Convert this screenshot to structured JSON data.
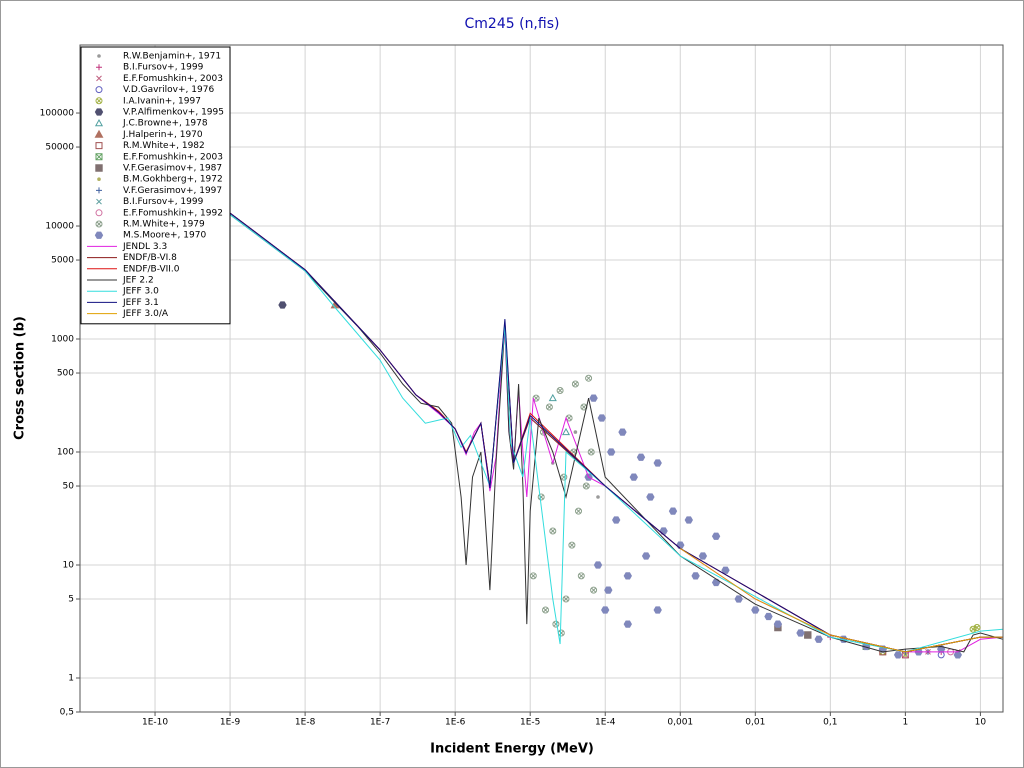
{
  "chart_data": {
    "type": "scatter",
    "title": "Cm245 (n,fis)",
    "x_label": "Incident Energy (MeV)",
    "y_label": "Cross section (b)",
    "log_x": true,
    "log_y": true,
    "grid": true,
    "legend": "upper left",
    "xlim": [
      1e-11,
      20
    ],
    "ylim": [
      0.5,
      400000
    ],
    "xticks": [
      {
        "value": 1e-10,
        "label": "1E-10"
      },
      {
        "value": 1e-09,
        "label": "1E-9"
      },
      {
        "value": 1e-08,
        "label": "1E-8"
      },
      {
        "value": 1e-07,
        "label": "1E-7"
      },
      {
        "value": 1e-06,
        "label": "1E-6"
      },
      {
        "value": 1e-05,
        "label": "1E-5"
      },
      {
        "value": 0.0001,
        "label": "1E-4"
      },
      {
        "value": 0.001,
        "label": "0,001"
      },
      {
        "value": 0.01,
        "label": "0,01"
      },
      {
        "value": 0.1,
        "label": "0,1"
      },
      1,
      10
    ],
    "yticks": [
      {
        "value": 0.5,
        "label": "0,5"
      },
      1,
      5,
      10,
      50,
      100,
      500,
      1000,
      5000,
      10000,
      50000,
      100000
    ],
    "series": [
      {
        "name": "R.W.Benjamin+, 1971",
        "kind": "points",
        "marker": "dot",
        "color": "#9a9a9a",
        "x": [
          2e-05,
          4e-05,
          8e-05
        ],
        "values": [
          80,
          150,
          40
        ]
      },
      {
        "name": "B.I.Fursov+, 1999",
        "kind": "points",
        "marker": "plus",
        "color": "#c0307a",
        "x": [
          0.1,
          0.3,
          1,
          3
        ],
        "values": [
          2.3,
          1.9,
          1.7,
          1.7
        ]
      },
      {
        "name": "E.F.Fomushkin+, 2003",
        "kind": "points",
        "marker": "x",
        "color": "#c06080",
        "x": [
          1,
          2,
          5
        ],
        "values": [
          1.6,
          1.7,
          1.7
        ]
      },
      {
        "name": "V.D.Gavrilov+, 1976",
        "kind": "points",
        "marker": "circle",
        "color": "#6060c0",
        "x": [
          1,
          3
        ],
        "values": [
          1.6,
          1.6
        ]
      },
      {
        "name": "I.A.Ivanin+, 1997",
        "kind": "points",
        "marker": "circle-x",
        "color": "#a0b040",
        "x": [
          0.5,
          1,
          8,
          9
        ],
        "values": [
          1.7,
          1.6,
          2.7,
          2.8
        ]
      },
      {
        "name": "V.P.Alfimenkov+, 1995",
        "kind": "points",
        "marker": "hexagon",
        "color": "#505070",
        "x": [
          5e-09
        ],
        "values": [
          2000
        ]
      },
      {
        "name": "J.C.Browne+, 1978",
        "kind": "points",
        "marker": "triangle",
        "color": "#50a0a0",
        "x": [
          2e-05,
          3e-05
        ],
        "values": [
          300,
          150
        ]
      },
      {
        "name": "J.Halperin+, 1970",
        "kind": "points",
        "marker": "triangle-filled",
        "color": "#b07060",
        "x": [
          2.5e-08
        ],
        "values": [
          2000
        ]
      },
      {
        "name": "R.M.White+, 1982",
        "kind": "points",
        "marker": "square",
        "color": "#a05050",
        "x": [
          0.5,
          1
        ],
        "values": [
          1.7,
          1.6
        ]
      },
      {
        "name": "E.F.Fomushkin+, 2003",
        "kind": "points",
        "marker": "square-x",
        "color": "#60a060",
        "x": [
          0.05,
          0.3
        ],
        "values": [
          2.4,
          1.9
        ]
      },
      {
        "name": "V.F.Gerasimov+, 1987",
        "kind": "points",
        "marker": "square-filled",
        "color": "#807070",
        "x": [
          0.02,
          0.05
        ],
        "values": [
          2.8,
          2.4
        ]
      },
      {
        "name": "B.M.Gokhberg+, 1972",
        "kind": "points",
        "marker": "dot",
        "color": "#b0b060",
        "x": [
          1
        ],
        "values": [
          1.6
        ]
      },
      {
        "name": "V.F.Gerasimov+, 1997",
        "kind": "points",
        "marker": "plus",
        "color": "#4060a0",
        "x": [
          1,
          2
        ],
        "values": [
          1.7,
          1.7
        ]
      },
      {
        "name": "B.I.Fursov+, 1999",
        "kind": "points",
        "marker": "x",
        "color": "#60a0a0",
        "x": [
          0.5
        ],
        "values": [
          1.8
        ]
      },
      {
        "name": "E.F.Fomushkin+, 1992",
        "kind": "points",
        "marker": "circle",
        "color": "#d070a0",
        "x": [
          1,
          4
        ],
        "values": [
          1.6,
          1.7
        ]
      },
      {
        "name": "R.M.White+, 1979",
        "kind": "points",
        "marker": "circle-x",
        "color": "#8ca08c",
        "x": [
          1.1e-05,
          1.2e-05,
          1.4e-05,
          1.5e-05,
          1.6e-05,
          1.8e-05,
          2e-05,
          2.2e-05,
          2.5e-05,
          2.6e-05,
          2.8e-05,
          3e-05,
          3.3e-05,
          3.6e-05,
          3.8e-05,
          4e-05,
          4.4e-05,
          4.8e-05,
          5.2e-05,
          5.6e-05,
          6e-05,
          6.5e-05,
          7e-05
        ],
        "values": [
          8,
          300,
          40,
          150,
          4,
          250,
          20,
          3,
          350,
          2.5,
          60,
          5,
          200,
          15,
          100,
          400,
          30,
          8,
          250,
          50,
          450,
          100,
          6
        ]
      },
      {
        "name": "M.S.Moore+, 1970",
        "kind": "points",
        "marker": "hexagon",
        "color": "#8088bc",
        "x": [
          6e-05,
          7e-05,
          8e-05,
          9e-05,
          0.0001,
          0.00011,
          0.00012,
          0.00014,
          0.00017,
          0.0002,
          0.0002,
          0.00024,
          0.0003,
          0.00035,
          0.0004,
          0.0005,
          0.0005,
          0.0006,
          0.0008,
          0.001,
          0.0013,
          0.0016,
          0.002,
          0.003,
          0.003,
          0.004,
          0.006,
          0.01,
          0.015,
          0.02,
          0.04,
          0.07,
          0.15,
          0.3,
          0.5,
          0.8,
          1.5,
          3,
          5
        ],
        "values": [
          60,
          300,
          10,
          200,
          4,
          6,
          100,
          25,
          150,
          8,
          3,
          60,
          90,
          12,
          40,
          80,
          4,
          20,
          30,
          15,
          25,
          8,
          12,
          7,
          18,
          9,
          5,
          4,
          3.5,
          3,
          2.5,
          2.2,
          2.2,
          1.9,
          1.8,
          1.6,
          1.7,
          1.8,
          1.6
        ]
      },
      {
        "name": "JENDL 3.3",
        "kind": "line",
        "color": "#e020e0",
        "x": [
          1e-10,
          1e-09,
          1e-08,
          2.5e-08,
          1e-07,
          3e-07,
          6e-07,
          1e-06,
          1.4e-06,
          1.8e-06,
          2.2e-06,
          2.9e-06,
          3.5e-06,
          4.2e-06,
          4.6e-06,
          5.2e-06,
          6e-06,
          7e-06,
          8e-06,
          9e-06,
          1.1e-05,
          2e-05,
          3e-05,
          6e-05,
          0.0001,
          0.001,
          0.01,
          0.1,
          1,
          5,
          10,
          20
        ],
        "values": [
          40000,
          13000,
          4100,
          2100,
          800,
          320,
          220,
          160,
          95,
          150,
          180,
          45,
          90,
          600,
          1200,
          150,
          80,
          350,
          100,
          40,
          300,
          80,
          200,
          60,
          50,
          14,
          5,
          2.4,
          1.7,
          1.7,
          2.2,
          2.3
        ]
      },
      {
        "name": "ENDF/B-VI.8",
        "kind": "line",
        "color": "#8b1a1a",
        "x": [
          1e-10,
          1e-09,
          1e-08,
          1e-07,
          3e-07,
          6e-07,
          1e-06,
          1.4e-06,
          2.2e-06,
          2.9e-06,
          4.6e-06,
          6e-06,
          1e-05,
          0.0001,
          0.001,
          0.1,
          1,
          10,
          20
        ],
        "values": [
          40000,
          13000,
          4100,
          800,
          320,
          230,
          160,
          100,
          180,
          50,
          1300,
          80,
          200,
          50,
          14,
          2.4,
          1.7,
          2.3,
          2.3
        ]
      },
      {
        "name": "ENDF/B-VII.0",
        "kind": "line",
        "color": "#dd1010",
        "x": [
          1e-10,
          1e-09,
          1e-08,
          1e-07,
          3e-07,
          6e-07,
          1e-06,
          1.4e-06,
          2.2e-06,
          2.9e-06,
          4.6e-06,
          6e-06,
          1e-05,
          0.0001,
          0.001,
          0.1,
          1,
          10,
          20
        ],
        "values": [
          40000,
          13000,
          4100,
          800,
          320,
          230,
          160,
          100,
          180,
          50,
          1400,
          80,
          220,
          50,
          14,
          2.4,
          1.7,
          2.3,
          2.3
        ]
      },
      {
        "name": "JEF 2.2",
        "kind": "line",
        "color": "#333333",
        "x": [
          1e-10,
          1e-09,
          1e-08,
          2.5e-08,
          5e-08,
          1e-07,
          2e-07,
          3.5e-07,
          6e-07,
          9e-07,
          1.2e-06,
          1.4e-06,
          1.7e-06,
          2.2e-06,
          2.9e-06,
          3.5e-06,
          4.2e-06,
          4.6e-06,
          5.2e-06,
          6e-06,
          7e-06,
          8e-06,
          9e-06,
          1e-05,
          1.3e-05,
          2e-05,
          3e-05,
          6e-05,
          0.0001,
          0.001,
          0.01,
          0.1,
          0.5,
          1,
          3,
          6,
          8,
          10,
          20
        ],
        "values": [
          40000,
          12600,
          4000,
          2100,
          1300,
          750,
          400,
          270,
          250,
          180,
          40,
          10,
          60,
          100,
          6,
          80,
          500,
          1400,
          150,
          70,
          400,
          50,
          3,
          30,
          200,
          100,
          40,
          300,
          60,
          12,
          4.5,
          2.3,
          1.7,
          1.8,
          1.9,
          1.7,
          2.4,
          2.5,
          2.2
        ]
      },
      {
        "name": "JEFF 3.0",
        "kind": "line",
        "color": "#33dddd",
        "x": [
          1e-10,
          1e-09,
          1e-08,
          2.5e-08,
          1e-07,
          2e-07,
          4e-07,
          8e-07,
          1.2e-06,
          1.6e-06,
          2.9e-06,
          4.6e-06,
          5.5e-06,
          8e-06,
          1e-05,
          2e-05,
          2.5e-05,
          3e-05,
          0.0001,
          0.001,
          0.1,
          1,
          10,
          20
        ],
        "values": [
          40000,
          12600,
          4000,
          1900,
          650,
          300,
          180,
          200,
          110,
          140,
          50,
          1300,
          120,
          60,
          200,
          5,
          2,
          100,
          50,
          12,
          2.3,
          1.7,
          2.6,
          2.7
        ]
      },
      {
        "name": "JEFF 3.1",
        "kind": "line",
        "color": "#101080",
        "x": [
          1e-10,
          1e-09,
          1e-08,
          1e-07,
          3e-07,
          6e-07,
          1e-06,
          1.4e-06,
          2.2e-06,
          2.9e-06,
          4.6e-06,
          6e-06,
          1e-05,
          0.0001,
          0.001,
          0.1,
          1,
          10,
          20
        ],
        "values": [
          40000,
          13000,
          4100,
          800,
          320,
          225,
          160,
          98,
          180,
          48,
          1500,
          80,
          210,
          50,
          14,
          2.4,
          1.7,
          2.3,
          2.3
        ]
      },
      {
        "name": "JEFF 3.0/A",
        "kind": "line",
        "color": "#e0a000",
        "x": [
          0.001,
          0.01,
          0.1,
          1,
          10,
          20
        ],
        "values": [
          14,
          5,
          2.4,
          1.7,
          2.3,
          2.3
        ]
      }
    ]
  }
}
